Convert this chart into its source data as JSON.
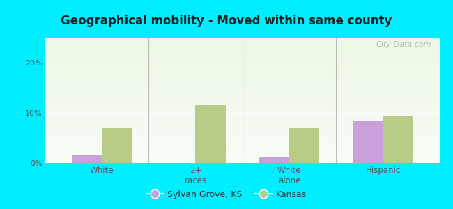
{
  "title": "Geographical mobility - Moved within same county",
  "categories": [
    "White",
    "2+\nraces",
    "White\nalone",
    "Hispanic"
  ],
  "sylvan_values": [
    1.5,
    0.0,
    1.2,
    8.5
  ],
  "kansas_values": [
    7.0,
    11.5,
    7.0,
    9.5
  ],
  "sylvan_color": "#c9a0dc",
  "kansas_color": "#b8cc88",
  "outer_bg": "#00eeff",
  "ylim": [
    0,
    25
  ],
  "yticks": [
    0,
    10,
    20
  ],
  "ytick_labels": [
    "0%",
    "10%",
    "20%"
  ],
  "bar_width": 0.32,
  "legend_sylvan": "Sylvan Grove, KS",
  "legend_kansas": "Kansas",
  "watermark": "City-Data.com"
}
